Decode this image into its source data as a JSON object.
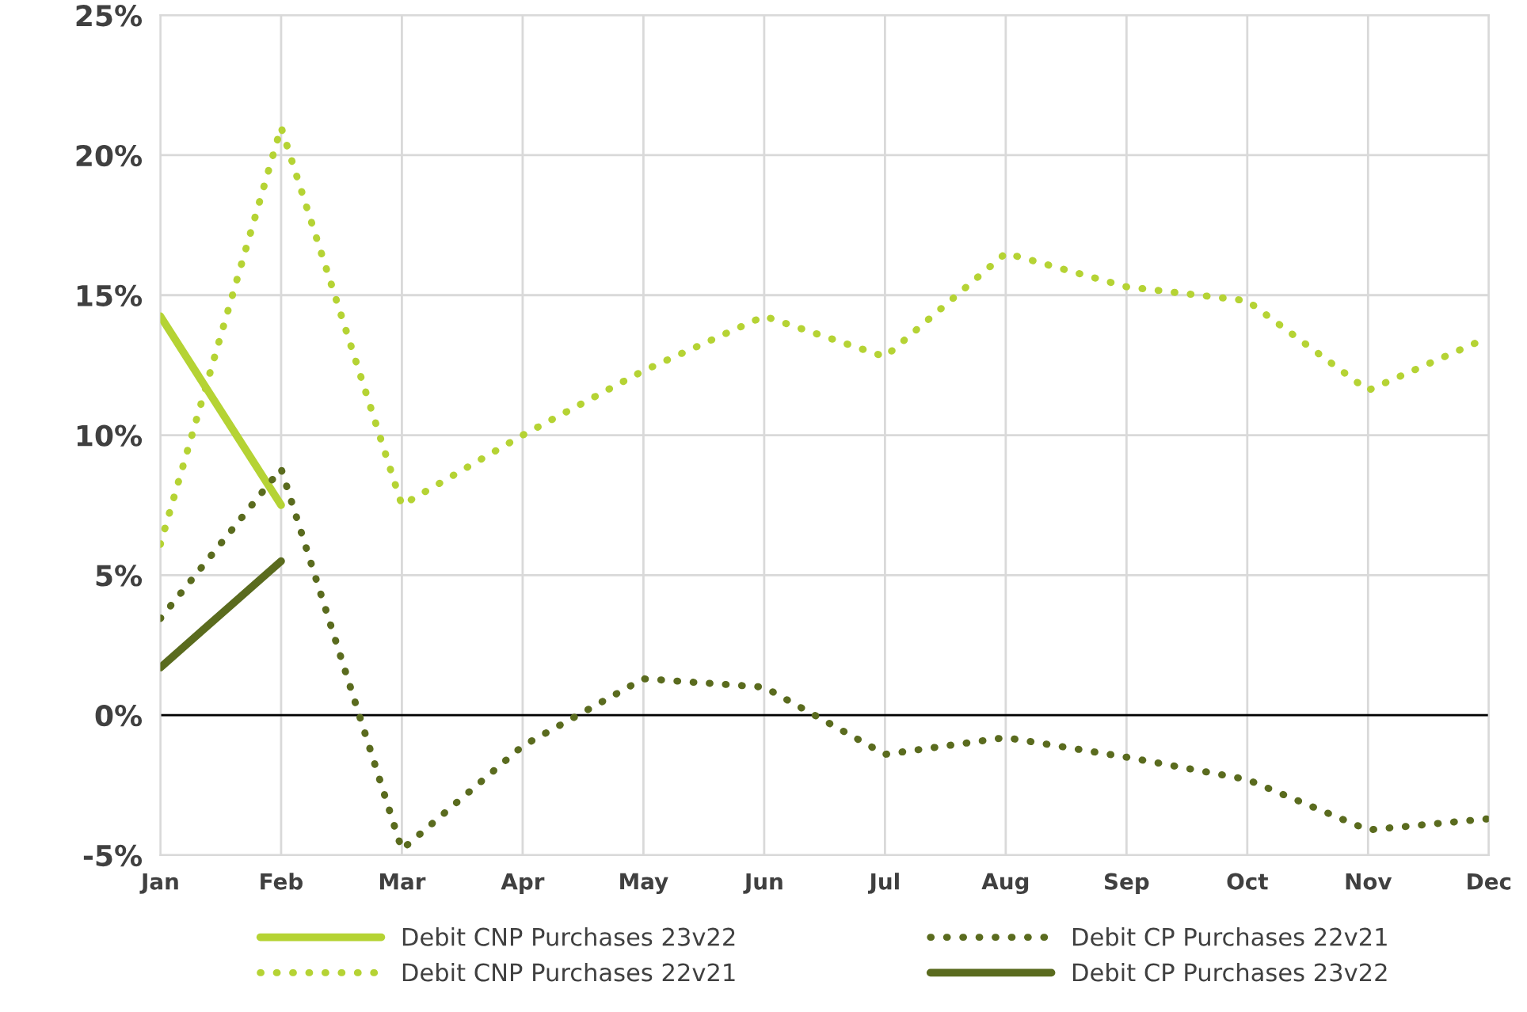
{
  "chart_data": {
    "type": "line",
    "categories": [
      "Jan",
      "Feb",
      "Mar",
      "Apr",
      "May",
      "Jun",
      "Jul",
      "Aug",
      "Sep",
      "Oct",
      "Nov",
      "Dec"
    ],
    "series": [
      {
        "name": "Debit CNP Purchases 23v22",
        "color": "#b5d334",
        "line_style": "solid",
        "values": [
          14.25,
          7.5,
          null,
          null,
          null,
          null,
          null,
          null,
          null,
          null,
          null,
          null
        ]
      },
      {
        "name": "Debit CNP Purchases 22v21",
        "color": "#b5d334",
        "line_style": "dotted",
        "values": [
          6.1,
          21.0,
          7.5,
          10.0,
          12.3,
          14.25,
          12.8,
          16.5,
          15.3,
          14.8,
          11.6,
          13.5
        ]
      },
      {
        "name": "Debit CP Purchases 22v21",
        "color": "#5a6b1e",
        "line_style": "dotted",
        "values": [
          3.45,
          8.8,
          -4.8,
          -1.1,
          1.3,
          1.0,
          -1.4,
          -0.8,
          -1.5,
          -2.3,
          -4.1,
          -3.7
        ]
      },
      {
        "name": "Debit CP Purchases 23v22",
        "color": "#5a6b1e",
        "line_style": "solid",
        "values": [
          1.7,
          5.5,
          null,
          null,
          null,
          null,
          null,
          null,
          null,
          null,
          null,
          null
        ]
      }
    ],
    "ylim": [
      -5,
      25
    ],
    "yticks": [
      {
        "value": -5,
        "label": "-5%"
      },
      {
        "value": 0,
        "label": "0%"
      },
      {
        "value": 5,
        "label": "5%"
      },
      {
        "value": 10,
        "label": "10%"
      },
      {
        "value": 15,
        "label": "15%"
      },
      {
        "value": 20,
        "label": "20%"
      },
      {
        "value": 25,
        "label": "25%"
      }
    ],
    "ref_lines": [
      {
        "axis": "y",
        "value": 0,
        "color": "#000000"
      }
    ],
    "grid": true,
    "legend": "bottom",
    "marker": "none"
  }
}
